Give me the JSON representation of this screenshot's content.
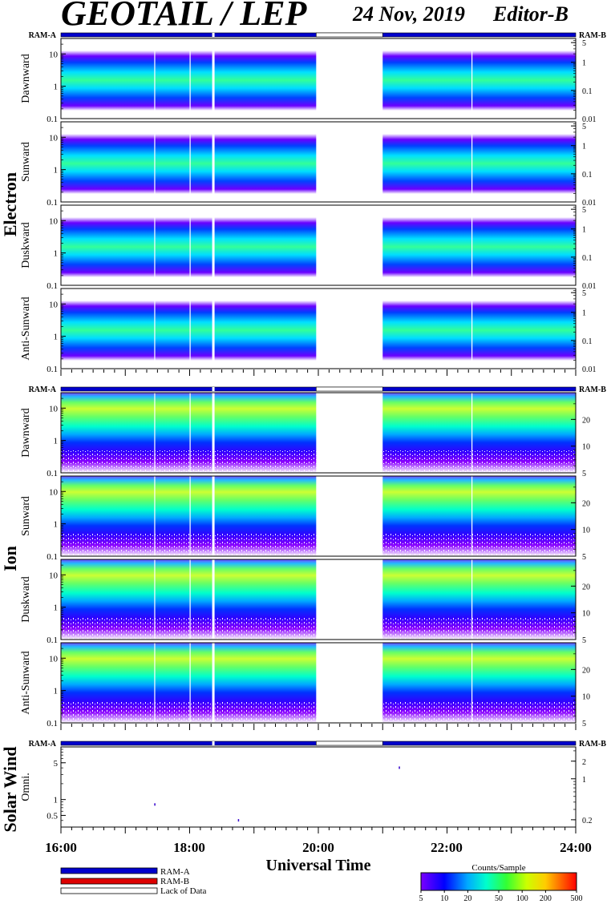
{
  "header": {
    "title": "GEOTAIL / LEP",
    "date": "24 Nov, 2019",
    "editor": "Editor-B"
  },
  "ram": {
    "left": "RAM-A",
    "right": "RAM-B"
  },
  "groups": [
    {
      "name": "Electron",
      "panels": [
        "Dawnward",
        "Sunward",
        "Duskward",
        "Anti-Sunward"
      ]
    },
    {
      "name": "Ion",
      "panels": [
        "Dawnward",
        "Sunward",
        "Duskward",
        "Anti-Sunward"
      ]
    },
    {
      "name": "Solar Wind",
      "panels": [
        "Omni."
      ]
    }
  ],
  "axes": {
    "electron_left_ticks": [
      "10",
      "1",
      "0.1"
    ],
    "electron_right_ticks": [
      "5",
      "1",
      "0.1",
      "0.01"
    ],
    "ion_left_ticks": [
      "10",
      "1",
      "0.1"
    ],
    "ion_right_ticks": [
      "20",
      "10",
      "5"
    ],
    "sw_left_ticks": [
      "5",
      "1",
      "0.5"
    ],
    "sw_right_ticks": [
      "2",
      "1",
      "0.2"
    ],
    "x_ticks": [
      "16:00",
      "18:00",
      "20:00",
      "22:00",
      "24:00"
    ],
    "xlabel": "Universal Time"
  },
  "legend": {
    "items": [
      {
        "label": "RAM-A",
        "color": "#0000cc"
      },
      {
        "label": "RAM-B",
        "color": "#dd0000"
      },
      {
        "label": "Lack of Data",
        "color": "#ffffff"
      }
    ]
  },
  "colorbar": {
    "title": "Counts/Sample",
    "ticks": [
      "5",
      "10",
      "20",
      "50",
      "100",
      "200",
      "500"
    ]
  },
  "chart_data": {
    "type": "heatmap",
    "x_range": [
      "16:00",
      "24:00"
    ],
    "data_gaps": [
      [
        "19:58",
        "21:00"
      ]
    ],
    "electron_left_axis_range": [
      0.1,
      30
    ],
    "ion_left_axis_range": [
      0.1,
      30
    ],
    "sw_left_axis_range": [
      0.3,
      10
    ],
    "colorbar_range": [
      5,
      500
    ],
    "colorbar_scale": "log"
  }
}
